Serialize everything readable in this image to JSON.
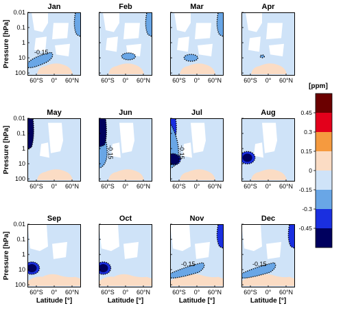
{
  "chart_data": {
    "type": "heatmap",
    "title": "",
    "ylabel": "Pressure [hPa]",
    "xlabel": "Latitude [°]",
    "y_scale": "log",
    "ylim": [
      150,
      0.01
    ],
    "xlim": [
      -90,
      90
    ],
    "yticks": [
      "0.01",
      "0.1",
      "1",
      "10",
      "100"
    ],
    "xticks": [
      "60°S",
      "0°",
      "60°N"
    ],
    "colorbar": {
      "unit": "[ppm]",
      "levels": [
        "0.45",
        "0.3",
        "0.15",
        "0",
        "-0.15",
        "-0.3",
        "-0.45"
      ],
      "colors": [
        "#6b0000",
        "#e3001b",
        "#f59a3f",
        "#fbdcc4",
        "#cfe3f8",
        "#69a6e6",
        "#1a2fe0",
        "#00005e"
      ]
    },
    "contour_label": "-0.15",
    "months": [
      {
        "name": "Jan",
        "contour_label": "-0.15",
        "features": [
          {
            "lat": -70,
            "p": 10,
            "value": -0.15,
            "extent": "band"
          },
          {
            "lat": 80,
            "p": 0.02,
            "value": -0.15,
            "extent": "edge"
          }
        ]
      },
      {
        "name": "Feb",
        "contour_label": "",
        "features": [
          {
            "lat": 10,
            "p": 8,
            "value": -0.15,
            "extent": "blob"
          },
          {
            "lat": 85,
            "p": 0.02,
            "value": -0.15,
            "extent": "edge"
          }
        ]
      },
      {
        "name": "Mar",
        "contour_label": "",
        "features": [
          {
            "lat": -20,
            "p": 10,
            "value": -0.15,
            "extent": "blob"
          },
          {
            "lat": 85,
            "p": 0.02,
            "value": -0.15,
            "extent": "edge"
          }
        ]
      },
      {
        "name": "Apr",
        "contour_label": "",
        "features": [
          {
            "lat": -20,
            "p": 8,
            "value": -0.15,
            "extent": "small"
          }
        ]
      },
      {
        "name": "May",
        "contour_label": "",
        "features": [
          {
            "lat": -85,
            "p": 0.03,
            "value": -0.45,
            "extent": "edge"
          }
        ]
      },
      {
        "name": "Jun",
        "contour_label": "-0.15",
        "features": [
          {
            "lat": -85,
            "p": 0.03,
            "value": -0.45,
            "extent": "edge"
          }
        ]
      },
      {
        "name": "Jul",
        "contour_label": "-0.15",
        "features": [
          {
            "lat": -80,
            "p": 5,
            "value": -0.45,
            "extent": "core"
          },
          {
            "lat": -85,
            "p": 0.03,
            "value": -0.3,
            "extent": "edge"
          }
        ]
      },
      {
        "name": "Aug",
        "contour_label": "",
        "features": [
          {
            "lat": -70,
            "p": 4,
            "value": -0.45,
            "extent": "core"
          }
        ]
      },
      {
        "name": "Sep",
        "contour_label": "",
        "features": [
          {
            "lat": -75,
            "p": 8,
            "value": -0.45,
            "extent": "core"
          }
        ]
      },
      {
        "name": "Oct",
        "contour_label": "",
        "features": [
          {
            "lat": -75,
            "p": 8,
            "value": -0.45,
            "extent": "core"
          }
        ]
      },
      {
        "name": "Nov",
        "contour_label": "-0.15",
        "features": [
          {
            "lat": -40,
            "p": 8,
            "value": -0.15,
            "extent": "band"
          },
          {
            "lat": 85,
            "p": 0.02,
            "value": -0.3,
            "extent": "edge"
          }
        ]
      },
      {
        "name": "Dec",
        "contour_label": "-0.15",
        "features": [
          {
            "lat": -40,
            "p": 8,
            "value": -0.15,
            "extent": "band"
          },
          {
            "lat": 85,
            "p": 0.02,
            "value": -0.3,
            "extent": "edge"
          }
        ]
      }
    ]
  }
}
